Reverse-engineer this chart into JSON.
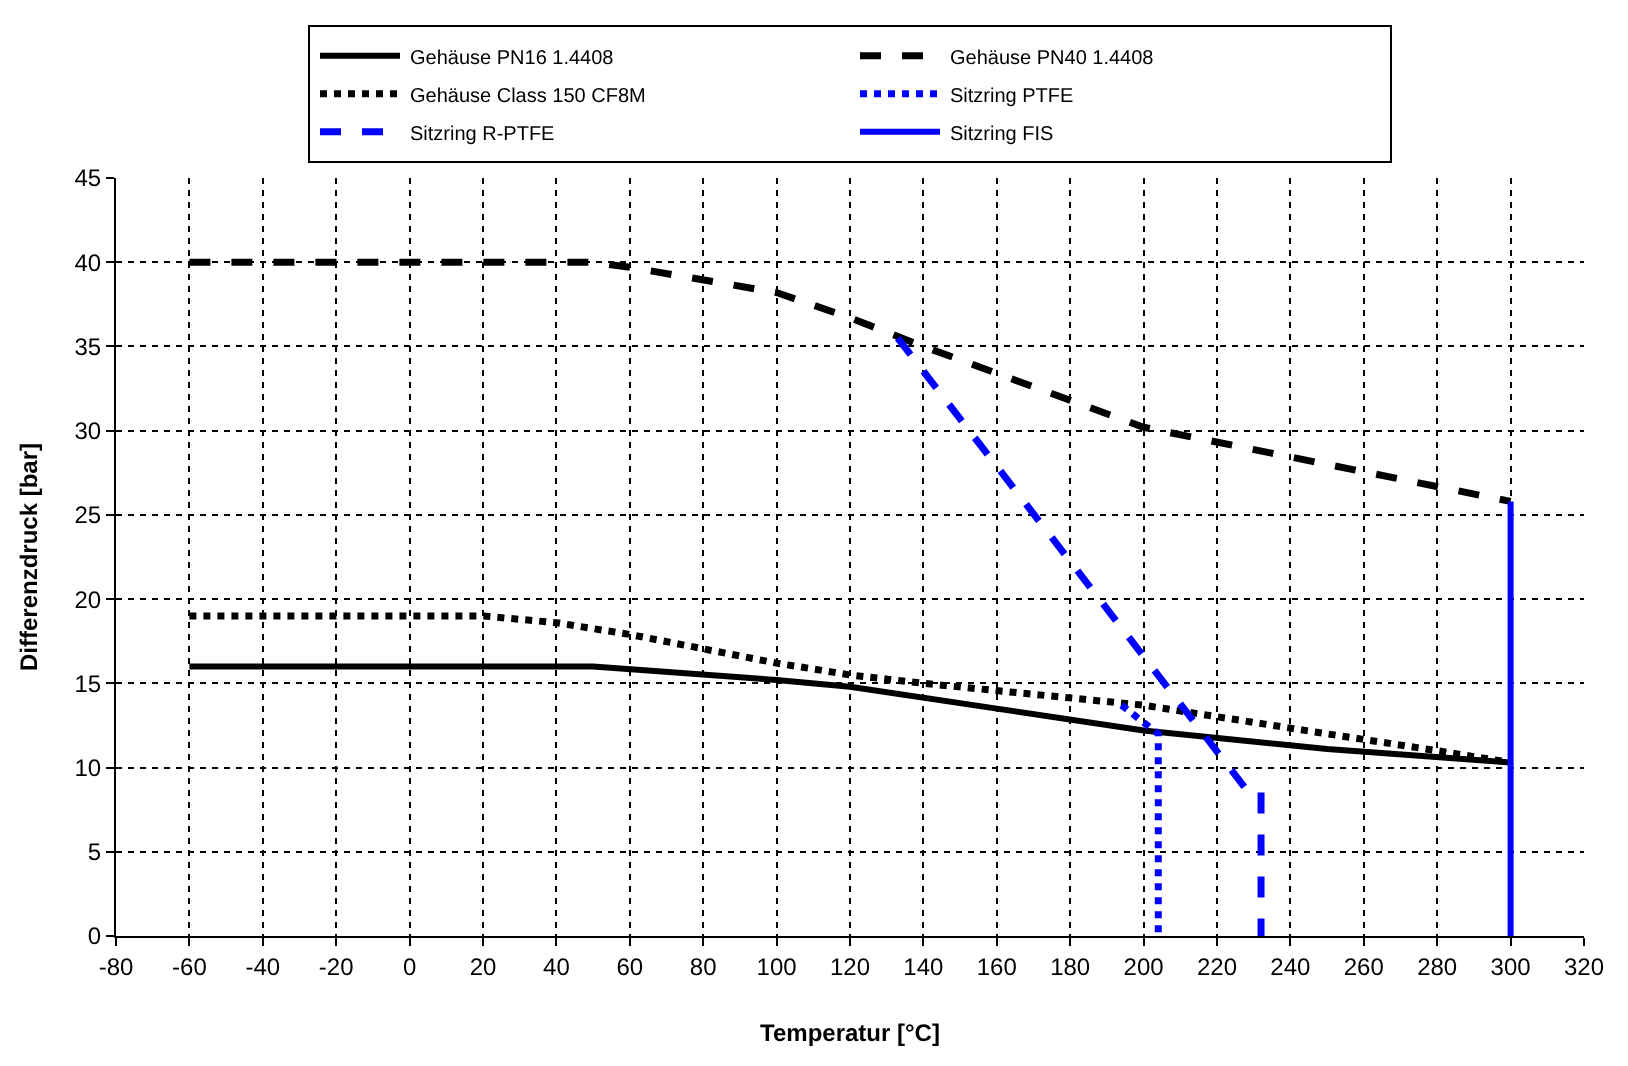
{
  "chart_data": {
    "type": "line",
    "xlabel": "Temperatur [°C]",
    "ylabel": "Differenzdruck [bar]",
    "xlim": [
      -80,
      320
    ],
    "xticks": [
      -80,
      -60,
      -40,
      -20,
      0,
      20,
      40,
      60,
      80,
      100,
      120,
      140,
      160,
      180,
      200,
      220,
      240,
      260,
      280,
      300,
      320
    ],
    "ylim": [
      0,
      45
    ],
    "yticks": [
      0,
      5,
      10,
      15,
      20,
      25,
      30,
      35,
      40,
      45
    ],
    "grid": true,
    "legend": "top",
    "marker": "none",
    "series": [
      {
        "name": "Gehäuse PN16 1.4408",
        "color": "#000000",
        "line_style": "solid",
        "x": [
          -60,
          50,
          100,
          120,
          160,
          200,
          250,
          300
        ],
        "values": [
          16,
          16,
          15.2,
          14.8,
          13.5,
          12.2,
          11.1,
          10.3
        ]
      },
      {
        "name": "Gehäuse PN40 1.4408",
        "color": "#000000",
        "line_style": "dashed",
        "x": [
          -60,
          50,
          60,
          100,
          120,
          140,
          200,
          300
        ],
        "values": [
          40,
          40,
          39.7,
          38.2,
          36.7,
          35,
          30.2,
          25.8
        ]
      },
      {
        "name": "Gehäuse Class 150 CF8M",
        "color": "#000000",
        "line_style": "dotted",
        "x": [
          -60,
          20,
          40,
          60,
          100,
          120,
          140,
          200,
          250,
          280,
          300
        ],
        "values": [
          19,
          19,
          18.6,
          17.9,
          16.2,
          15.5,
          15,
          13.7,
          12,
          11,
          10.3
        ]
      },
      {
        "name": "Sitzring PTFE",
        "color": "#0000ff",
        "line_style": "dotted",
        "x": [
          194,
          204,
          204
        ],
        "values": [
          13.7,
          12,
          0
        ]
      },
      {
        "name": "Sitzring R-PTFE",
        "color": "#0000ff",
        "line_style": "dashed",
        "x": [
          133,
          228,
          232,
          232
        ],
        "values": [
          35.5,
          8.7,
          8.7,
          0
        ]
      },
      {
        "name": "Sitzring FIS",
        "color": "#0000ff",
        "line_style": "solid",
        "x": [
          300,
          300
        ],
        "values": [
          25.8,
          0
        ]
      }
    ]
  }
}
